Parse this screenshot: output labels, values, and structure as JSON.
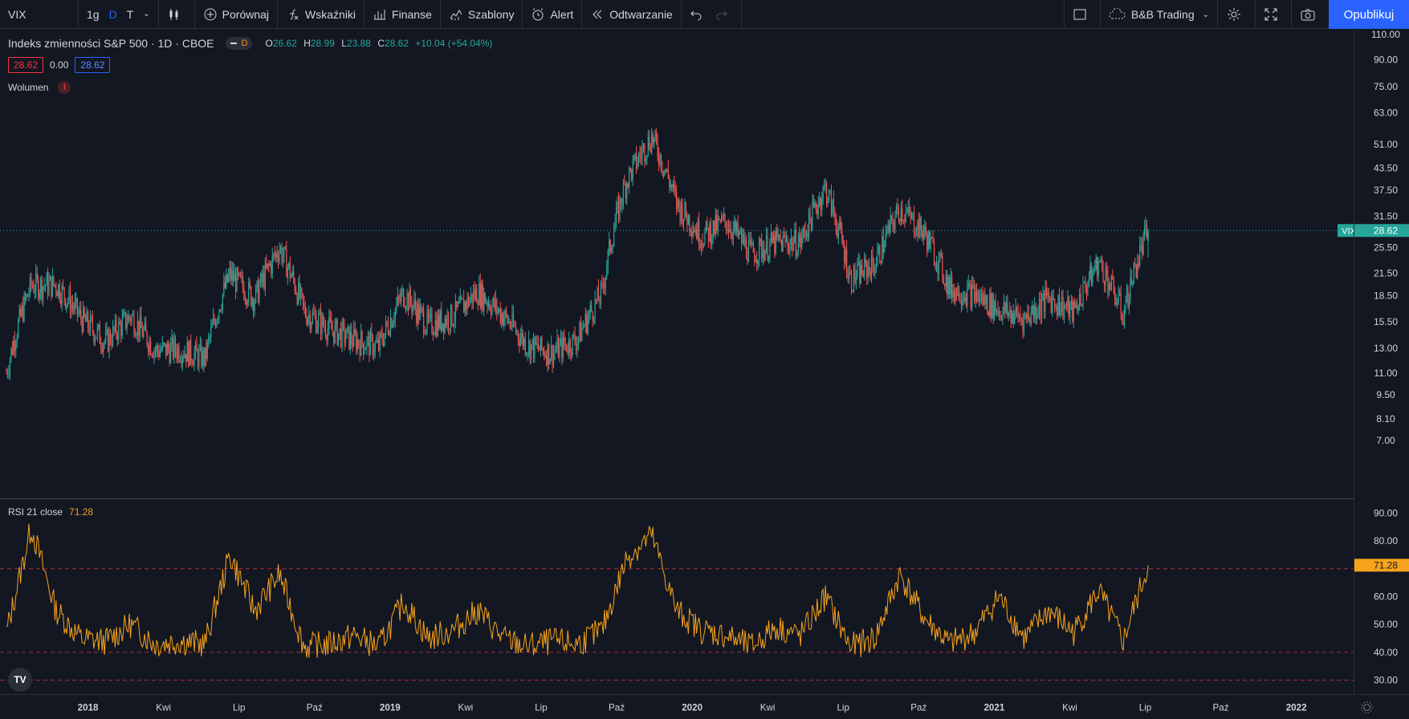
{
  "toolbar": {
    "symbol": "VIX",
    "intervals": [
      "1g",
      "D",
      "T"
    ],
    "active_interval": "D",
    "compare_label": "Porównaj",
    "indicators_label": "Wskaźniki",
    "finance_label": "Finanse",
    "templates_label": "Szablony",
    "alert_label": "Alert",
    "replay_label": "Odtwarzanie",
    "layout_name": "B&B Trading",
    "publish_label": "Opublikuj"
  },
  "legend": {
    "title": "Indeks zmienności S&P 500 · 1D · CBOE",
    "pill_letter": "D",
    "o_label": "O",
    "o_value": "26.62",
    "h_label": "H",
    "h_value": "28.99",
    "l_label": "L",
    "l_value": "23.88",
    "c_label": "C",
    "c_value": "28.62",
    "change": "+10.04 (+54.04%)",
    "bid": "28.62",
    "spread": "0.00",
    "ask": "28.62",
    "volume_label": "Wolumen",
    "volume_warning": "!"
  },
  "rsi_legend": {
    "label": "RSI 21 close",
    "value": "71.28"
  },
  "price_axis": {
    "labels": [
      "110.00",
      "90.00",
      "75.00",
      "63.00",
      "51.00",
      "43.50",
      "37.50",
      "31.50",
      "25.50",
      "21.50",
      "18.50",
      "15.50",
      "13.00",
      "11.00",
      "9.50",
      "8.10",
      "7.00"
    ],
    "last_symbol": "VIX",
    "last_price": "28.62"
  },
  "rsi_axis": {
    "labels": [
      "90.00",
      "80.00",
      "60.00",
      "50.00",
      "40.00",
      "30.00"
    ],
    "last_value": "71.28"
  },
  "time_axis": {
    "labels": [
      "2018",
      "Kwi",
      "Lip",
      "Paź",
      "2019",
      "Kwi",
      "Lip",
      "Paź",
      "2020",
      "Kwi",
      "Lip",
      "Paź",
      "2021",
      "Kwi",
      "Lip",
      "Paź",
      "2022"
    ]
  },
  "colors": {
    "up": "#26a69a",
    "down": "#ef5350",
    "rsi": "#f7a31c",
    "background": "#131722",
    "accent": "#2962ff"
  },
  "chart_data": {
    "type": "candlestick",
    "symbol": "VIX",
    "title": "Indeks zmienności S&P 500 · 1D · CBOE",
    "x": [
      "2018-01",
      "2018-02",
      "2018-03",
      "2018-04",
      "2018-05",
      "2018-06",
      "2018-07",
      "2018-08",
      "2018-09",
      "2018-10",
      "2018-11",
      "2018-12",
      "2019-01",
      "2019-02",
      "2019-03",
      "2019-04",
      "2019-05",
      "2019-06",
      "2019-07",
      "2019-08",
      "2019-09",
      "2019-10",
      "2019-11",
      "2019-12",
      "2020-01",
      "2020-02",
      "2020-03",
      "2020-04",
      "2020-05",
      "2020-06",
      "2020-07",
      "2020-08",
      "2020-09",
      "2020-10",
      "2020-11",
      "2020-12",
      "2021-01",
      "2021-02",
      "2021-03",
      "2021-04",
      "2021-05",
      "2021-06",
      "2021-07",
      "2021-08",
      "2021-09",
      "2021-10",
      "2021-11"
    ],
    "close_monthly": [
      11,
      19.8,
      19.9,
      15.9,
      13.5,
      16.1,
      12.8,
      12.9,
      12.1,
      21.2,
      18.1,
      25.4,
      16.6,
      14.8,
      13.7,
      13.1,
      18.7,
      15.1,
      16.1,
      19,
      16.2,
      13.2,
      12.6,
      13.8,
      18.8,
      40.1,
      53.5,
      34.2,
      27.5,
      30.4,
      24.5,
      26.4,
      26.4,
      38,
      20.6,
      22.8,
      33.1,
      27.9,
      19.4,
      18.6,
      16.8,
      15.8,
      18.2,
      16.5,
      23.1,
      16.3,
      28.6
    ],
    "ylim": [
      7,
      110
    ],
    "y_scale": "log",
    "last": {
      "open": 26.62,
      "high": 28.99,
      "low": 23.88,
      "close": 28.62,
      "change": 10.04,
      "change_pct": 54.04
    },
    "rsi": {
      "label": "RSI 21 close",
      "period": 21,
      "values_monthly": [
        47,
        85,
        55,
        45,
        44,
        50,
        43,
        44,
        43,
        75,
        55,
        68,
        42,
        43,
        46,
        42,
        58,
        45,
        48,
        55,
        45,
        42,
        44,
        43,
        48,
        74,
        82,
        55,
        48,
        46,
        42,
        49,
        46,
        60,
        42,
        45,
        68,
        52,
        43,
        47,
        60,
        45,
        55,
        47,
        62,
        44,
        71.28
      ],
      "ylim": [
        25,
        95
      ],
      "levels": [
        70,
        40,
        30
      ],
      "last": 71.28
    }
  }
}
